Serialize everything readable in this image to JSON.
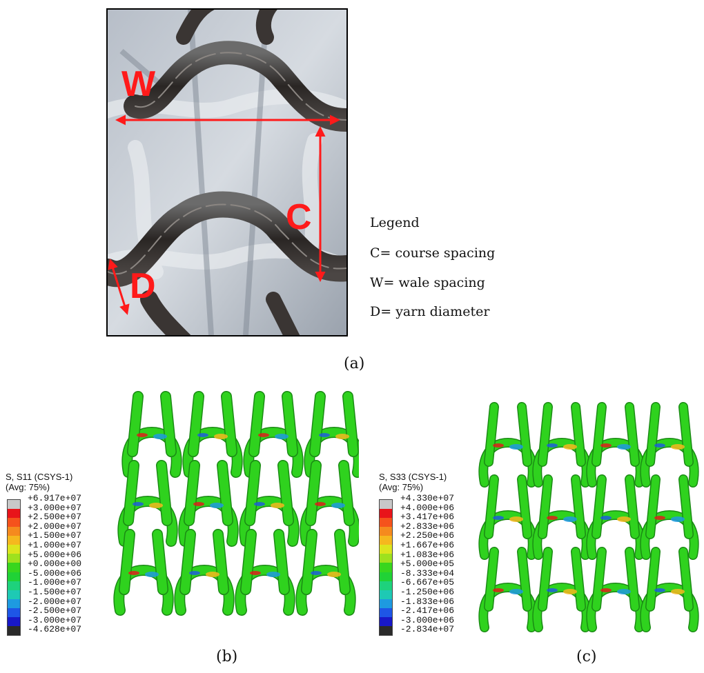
{
  "panel_a": {
    "labels": {
      "w": "W",
      "c": "C",
      "d": "D"
    },
    "arrow_color": "#ff1a1a",
    "legend": {
      "title": "Legend",
      "items": [
        "C= course spacing",
        "W= wale spacing",
        "D= yarn diameter"
      ]
    },
    "caption": "(a)"
  },
  "panel_b": {
    "title_line1": "S, S11 (CSYS-1)",
    "title_line2": "(Avg: 75%)",
    "scale_values": [
      "+6.917e+07",
      "+3.000e+07",
      "+2.500e+07",
      "+2.000e+07",
      "+1.500e+07",
      "+1.000e+07",
      "+5.000e+06",
      "+0.000e+00",
      "-5.000e+06",
      "-1.000e+07",
      "-1.500e+07",
      "-2.000e+07",
      "-2.500e+07",
      "-3.000e+07",
      "-4.628e+07"
    ],
    "caption": "(b)"
  },
  "panel_c": {
    "title_line1": "S, S33 (CSYS-1)",
    "title_line2": "(Avg: 75%)",
    "scale_values": [
      "+4.330e+07",
      "+4.000e+06",
      "+3.417e+06",
      "+2.833e+06",
      "+2.250e+06",
      "+1.667e+06",
      "+1.083e+06",
      "+5.000e+05",
      "-8.333e+04",
      "-6.667e+05",
      "-1.250e+06",
      "-1.833e+06",
      "-2.417e+06",
      "-3.000e+06",
      "-2.834e+07"
    ],
    "caption": "(c)"
  },
  "scale_colors": [
    "#c8c8c8",
    "#e8141a",
    "#f5521c",
    "#f58a1e",
    "#f5b81e",
    "#dce51e",
    "#9ee11e",
    "#38d61e",
    "#20d236",
    "#1ed27c",
    "#1ec9b4",
    "#1e9ae0",
    "#1e56e6",
    "#1818c8",
    "#2a2a2a"
  ]
}
